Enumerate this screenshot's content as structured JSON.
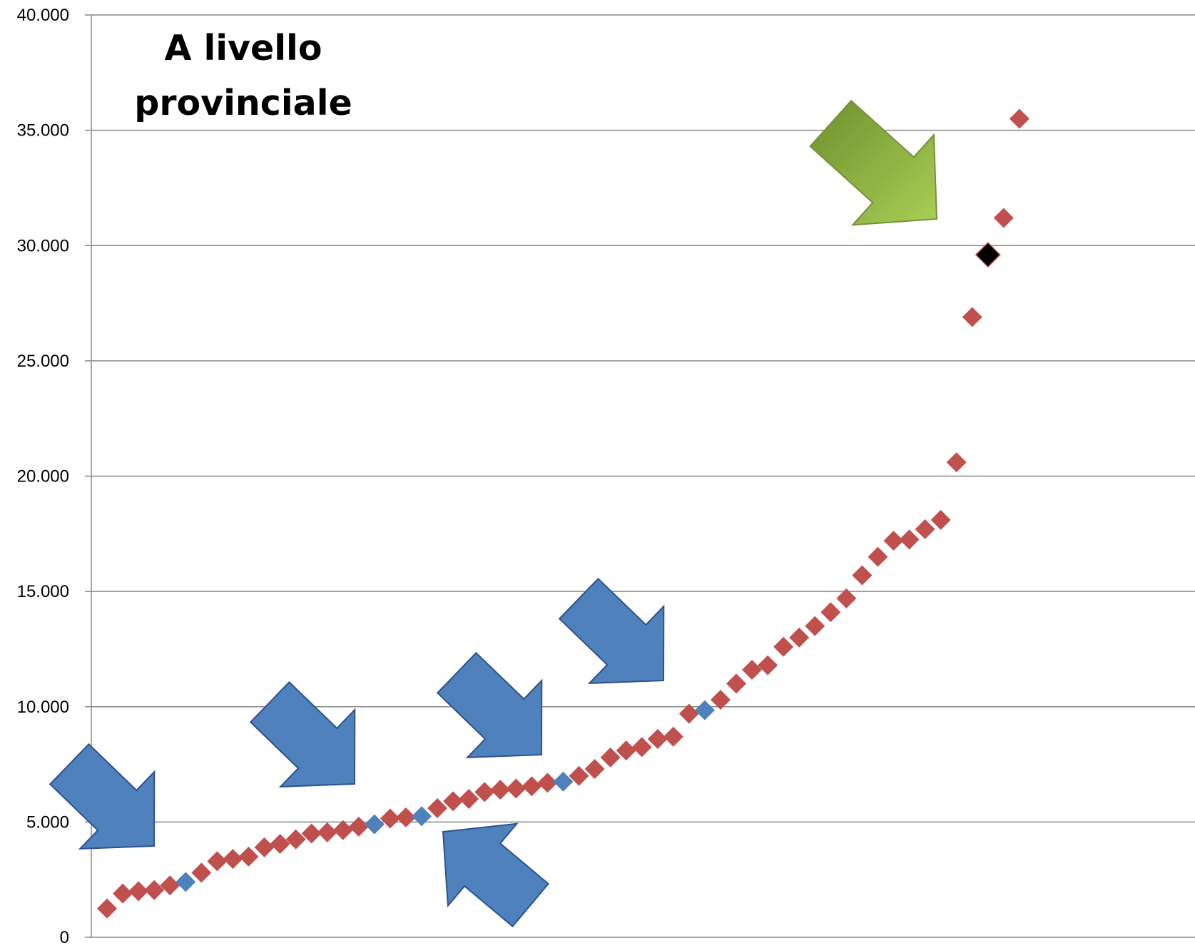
{
  "chart_data": {
    "type": "scatter",
    "title_lines": [
      "A livello",
      "provinciale"
    ],
    "ylim": [
      0,
      40000
    ],
    "y_ticks": [
      0,
      5000,
      10000,
      15000,
      20000,
      25000,
      30000,
      35000,
      40000
    ],
    "y_tick_labels": [
      "0",
      "5.000",
      "10.000",
      "15.000",
      "20.000",
      "25.000",
      "30.000",
      "35.000",
      "40.000"
    ],
    "grid": true,
    "legend": "none",
    "x_categories": 104,
    "series": [
      {
        "role": "points",
        "color": "#C0504D",
        "values": [
          1250,
          1900,
          2000,
          2050,
          2250,
          2400,
          2800,
          3300,
          3400,
          3500,
          3900,
          4050,
          4250,
          4500,
          4550,
          4650,
          4800,
          4900,
          5150,
          5200,
          5250,
          5600,
          5900,
          6000,
          6300,
          6400,
          6450,
          6550,
          6700,
          6750,
          7000,
          7300,
          7800,
          8100,
          8250,
          8600,
          8700,
          9700,
          9850,
          10300,
          11000,
          11600,
          11800,
          12600,
          13000,
          13500,
          14100,
          14700,
          15700,
          16500,
          17200,
          17250,
          17700,
          18100,
          20600,
          26900,
          29600,
          31200,
          35500
        ]
      }
    ],
    "highlighted_points": [
      {
        "index": 5,
        "value": 2400,
        "color": "#4F81BD"
      },
      {
        "index": 17,
        "value": 4900,
        "color": "#4F81BD"
      },
      {
        "index": 20,
        "value": 5250,
        "color": "#4F81BD"
      },
      {
        "index": 29,
        "value": 6750,
        "color": "#4F81BD"
      },
      {
        "index": 38,
        "value": 9850,
        "color": "#4F81BD"
      },
      {
        "index": 56,
        "value": 29600,
        "color": "#000000"
      }
    ],
    "annotations": [
      {
        "type": "arrow",
        "color": "#4F81BD",
        "points_to_index": 5
      },
      {
        "type": "arrow",
        "color": "#4F81BD",
        "points_to_index": 17
      },
      {
        "type": "arrow",
        "color": "#4F81BD",
        "points_to_index": 20
      },
      {
        "type": "arrow",
        "color": "#4F81BD",
        "points_to_index": 29
      },
      {
        "type": "arrow",
        "color": "#4F81BD",
        "points_to_index": 38
      },
      {
        "type": "arrow",
        "color": "#9BBB59",
        "points_to_index": 56
      }
    ]
  },
  "colors": {
    "grid": "#898989",
    "axis": "#898989",
    "points": "#C0504D",
    "highlight": "#4F81BD",
    "special": "#000000",
    "arrow_blue": "#4F81BD",
    "arrow_blue_edge": "#2F528F",
    "arrow_green_light": "#9BBB59",
    "arrow_green_dark": "#76923C"
  }
}
